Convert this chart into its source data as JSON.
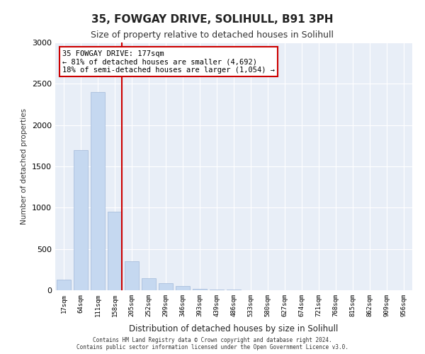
{
  "title1": "35, FOWGAY DRIVE, SOLIHULL, B91 3PH",
  "title2": "Size of property relative to detached houses in Solihull",
  "xlabel": "Distribution of detached houses by size in Solihull",
  "ylabel": "Number of detached properties",
  "bar_color": "#c5d8f0",
  "bar_edgecolor": "#a0b8d8",
  "background_color": "#e8eef7",
  "categories": [
    "17sqm",
    "64sqm",
    "111sqm",
    "158sqm",
    "205sqm",
    "252sqm",
    "299sqm",
    "346sqm",
    "393sqm",
    "439sqm",
    "486sqm",
    "533sqm",
    "580sqm",
    "627sqm",
    "674sqm",
    "721sqm",
    "768sqm",
    "815sqm",
    "862sqm",
    "909sqm",
    "956sqm"
  ],
  "values": [
    130,
    1700,
    2400,
    950,
    350,
    150,
    90,
    50,
    20,
    5,
    5,
    3,
    3,
    0,
    0,
    0,
    0,
    0,
    0,
    0,
    0
  ],
  "ylim": [
    0,
    3000
  ],
  "yticks": [
    0,
    500,
    1000,
    1500,
    2000,
    2500,
    3000
  ],
  "property_size": 177,
  "property_label": "35 FOWGAY DRIVE: 177sqm",
  "annotation_line1": "← 81% of detached houses are smaller (4,692)",
  "annotation_line2": "18% of semi-detached houses are larger (1,054) →",
  "annotation_box_color": "#ffffff",
  "annotation_box_edgecolor": "#cc0000",
  "vline_color": "#cc0000",
  "vline_x": 3,
  "footer1": "Contains HM Land Registry data © Crown copyright and database right 2024.",
  "footer2": "Contains public sector information licensed under the Open Government Licence v3.0."
}
